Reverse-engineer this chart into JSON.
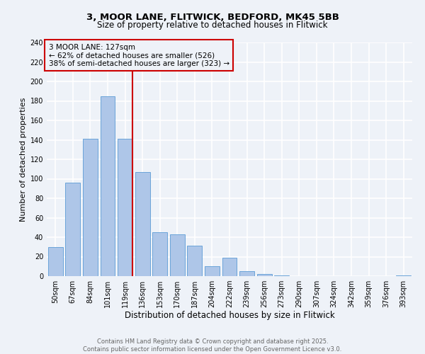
{
  "title_line1": "3, MOOR LANE, FLITWICK, BEDFORD, MK45 5BB",
  "title_line2": "Size of property relative to detached houses in Flitwick",
  "xlabel": "Distribution of detached houses by size in Flitwick",
  "ylabel": "Number of detached properties",
  "bar_labels": [
    "50sqm",
    "67sqm",
    "84sqm",
    "101sqm",
    "119sqm",
    "136sqm",
    "153sqm",
    "170sqm",
    "187sqm",
    "204sqm",
    "222sqm",
    "239sqm",
    "256sqm",
    "273sqm",
    "290sqm",
    "307sqm",
    "324sqm",
    "342sqm",
    "359sqm",
    "376sqm",
    "393sqm"
  ],
  "bar_values": [
    30,
    96,
    141,
    185,
    141,
    107,
    45,
    43,
    31,
    10,
    19,
    5,
    2,
    1,
    0,
    0,
    0,
    0,
    0,
    0,
    1
  ],
  "bar_color": "#aec6e8",
  "bar_edgecolor": "#5b9bd5",
  "vline_color": "#cc0000",
  "annotation_text": "3 MOOR LANE: 127sqm\n← 62% of detached houses are smaller (526)\n38% of semi-detached houses are larger (323) →",
  "annotation_box_color": "#cc0000",
  "ylim": [
    0,
    240
  ],
  "yticks": [
    0,
    20,
    40,
    60,
    80,
    100,
    120,
    140,
    160,
    180,
    200,
    220,
    240
  ],
  "background_color": "#eef2f8",
  "grid_color": "#ffffff",
  "footer_text": "Contains HM Land Registry data © Crown copyright and database right 2025.\nContains public sector information licensed under the Open Government Licence v3.0.",
  "title_fontsize": 9.5,
  "subtitle_fontsize": 8.5,
  "xlabel_fontsize": 8.5,
  "ylabel_fontsize": 8,
  "tick_fontsize": 7,
  "footer_fontsize": 6,
  "annot_fontsize": 7.5
}
